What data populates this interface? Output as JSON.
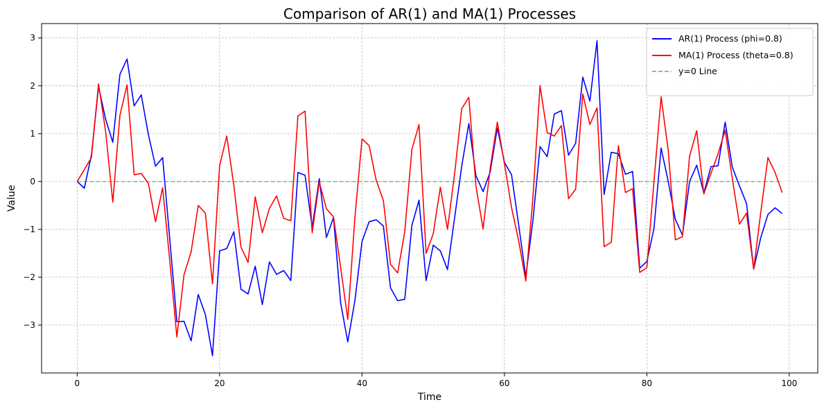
{
  "chart_data": {
    "type": "line",
    "title": "Comparison of AR(1) and MA(1) Processes",
    "xlabel": "Time",
    "ylabel": "Value",
    "xlim": [
      -5,
      104
    ],
    "ylim": [
      -4,
      3.3
    ],
    "xticks": [
      0,
      20,
      40,
      60,
      80,
      100
    ],
    "yticks": [
      -3,
      -2,
      -1,
      0,
      1,
      2,
      3
    ],
    "xtick_labels": [
      "0",
      "20",
      "40",
      "60",
      "80",
      "100"
    ],
    "ytick_labels": [
      "−3",
      "−2",
      "−1",
      "0",
      "1",
      "2",
      "3"
    ],
    "grid": true,
    "legend_position": "top-right",
    "series": [
      {
        "name": "AR(1) Process (phi=0.8)",
        "color": "#0000ff",
        "style": "solid",
        "x_start": 0,
        "values": [
          0,
          -0.14,
          0.55,
          1.98,
          1.3,
          0.82,
          2.24,
          2.56,
          1.58,
          1.81,
          0.98,
          0.32,
          0.5,
          -1.2,
          -2.93,
          -2.92,
          -3.33,
          -2.36,
          -2.78,
          -3.64,
          -1.45,
          -1.4,
          -1.05,
          -2.25,
          -2.35,
          -1.77,
          -2.57,
          -1.68,
          -1.94,
          -1.86,
          -2.07,
          0.19,
          0.13,
          -0.96,
          0.06,
          -1.17,
          -0.75,
          -2.54,
          -3.35,
          -2.49,
          -1.25,
          -0.84,
          -0.8,
          -0.93,
          -2.22,
          -2.49,
          -2.46,
          -0.92,
          -0.39,
          -2.07,
          -1.33,
          -1.45,
          -1.84,
          -0.76,
          0.32,
          1.21,
          0.12,
          -0.21,
          0.2,
          1.12,
          0.4,
          0.14,
          -0.91,
          -1.99,
          -0.81,
          0.73,
          0.52,
          1.41,
          1.48,
          0.55,
          0.8,
          2.18,
          1.68,
          2.94,
          -0.27,
          0.61,
          0.58,
          0.15,
          0.21,
          -1.81,
          -1.67,
          -0.98,
          0.7,
          0.0,
          -0.79,
          -1.12,
          0.0,
          0.34,
          -0.24,
          0.31,
          0.33,
          1.24,
          0.3,
          -0.09,
          -0.46,
          -1.83,
          -1.17,
          -0.69,
          -0.55,
          -0.67
        ]
      },
      {
        "name": "MA(1) Process (theta=0.8)",
        "color": "#ff0000",
        "style": "solid",
        "x_start": 0,
        "values": [
          0,
          0.25,
          0.5,
          2.04,
          1.04,
          -0.43,
          1.38,
          2.02,
          0.14,
          0.17,
          -0.04,
          -0.84,
          -0.13,
          -1.65,
          -3.25,
          -1.95,
          -1.47,
          -0.5,
          -0.66,
          -2.14,
          0.33,
          0.95,
          -0.08,
          -1.37,
          -1.69,
          -0.32,
          -1.07,
          -0.56,
          -0.3,
          -0.77,
          -0.82,
          1.37,
          1.47,
          -1.07,
          -0.01,
          -0.57,
          -0.74,
          -1.8,
          -2.88,
          -0.75,
          0.89,
          0.75,
          0.02,
          -0.4,
          -1.73,
          -1.91,
          -1.05,
          0.67,
          1.19,
          -1.5,
          -1.09,
          -0.12,
          -1.0,
          0.16,
          1.52,
          1.76,
          -0.1,
          -0.99,
          0.28,
          1.24,
          0.37,
          -0.55,
          -1.24,
          -2.08,
          -0.34,
          2.0,
          1.02,
          0.95,
          1.17,
          -0.36,
          -0.16,
          1.83,
          1.19,
          1.54,
          -1.36,
          -1.27,
          0.75,
          -0.23,
          -0.15,
          -1.9,
          -1.8,
          0.0,
          1.77,
          0.65,
          -1.22,
          -1.15,
          0.53,
          1.06,
          -0.26,
          0.17,
          0.58,
          1.07,
          0.06,
          -0.89,
          -0.66,
          -1.83,
          -0.64,
          0.5,
          0.19,
          -0.23
        ]
      },
      {
        "name": "y=0 Line",
        "color": "#2ca02c",
        "style": "dashed",
        "x": [
          0,
          99
        ],
        "values": [
          0,
          0
        ]
      }
    ]
  }
}
